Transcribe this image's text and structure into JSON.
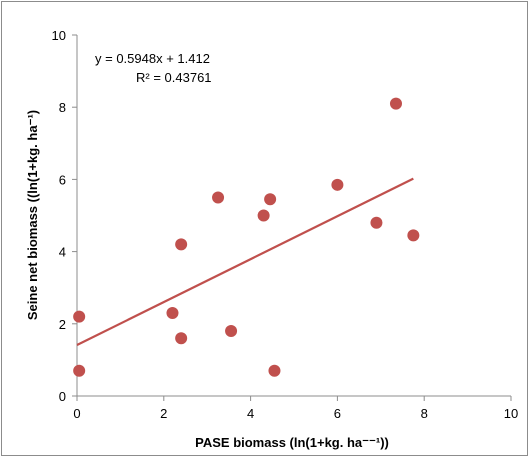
{
  "chart_data": {
    "type": "scatter",
    "xlabel": "PASE biomass (ln(1+kg. ha⁻⁻¹))",
    "ylabel": "Seine net biomass ((ln(1+kg. ha⁻¹)",
    "xlim": [
      0,
      10
    ],
    "ylim": [
      0,
      10
    ],
    "x_ticks": [
      0,
      2,
      4,
      6,
      8,
      10
    ],
    "y_ticks": [
      0,
      2,
      4,
      6,
      8,
      10
    ],
    "grid": false,
    "legend": "none",
    "marker_color": "#c0504d",
    "trendline_color": "#c0504d",
    "points": [
      {
        "x": 0.05,
        "y": 2.2
      },
      {
        "x": 0.05,
        "y": 0.7
      },
      {
        "x": 2.2,
        "y": 2.3
      },
      {
        "x": 2.4,
        "y": 4.2
      },
      {
        "x": 2.4,
        "y": 1.6
      },
      {
        "x": 3.25,
        "y": 5.5
      },
      {
        "x": 3.55,
        "y": 1.8
      },
      {
        "x": 4.3,
        "y": 5.0
      },
      {
        "x": 4.45,
        "y": 5.45
      },
      {
        "x": 4.55,
        "y": 0.7
      },
      {
        "x": 6.0,
        "y": 5.85
      },
      {
        "x": 6.9,
        "y": 4.8
      },
      {
        "x": 7.35,
        "y": 8.1
      },
      {
        "x": 7.75,
        "y": 4.45
      }
    ],
    "trendline": {
      "slope": 0.5948,
      "intercept": 1.412,
      "x_range": [
        0,
        7.75
      ]
    },
    "annotations": {
      "equation": "y = 0.5948x + 1.412",
      "r_squared": "R² = 0.43761"
    }
  }
}
